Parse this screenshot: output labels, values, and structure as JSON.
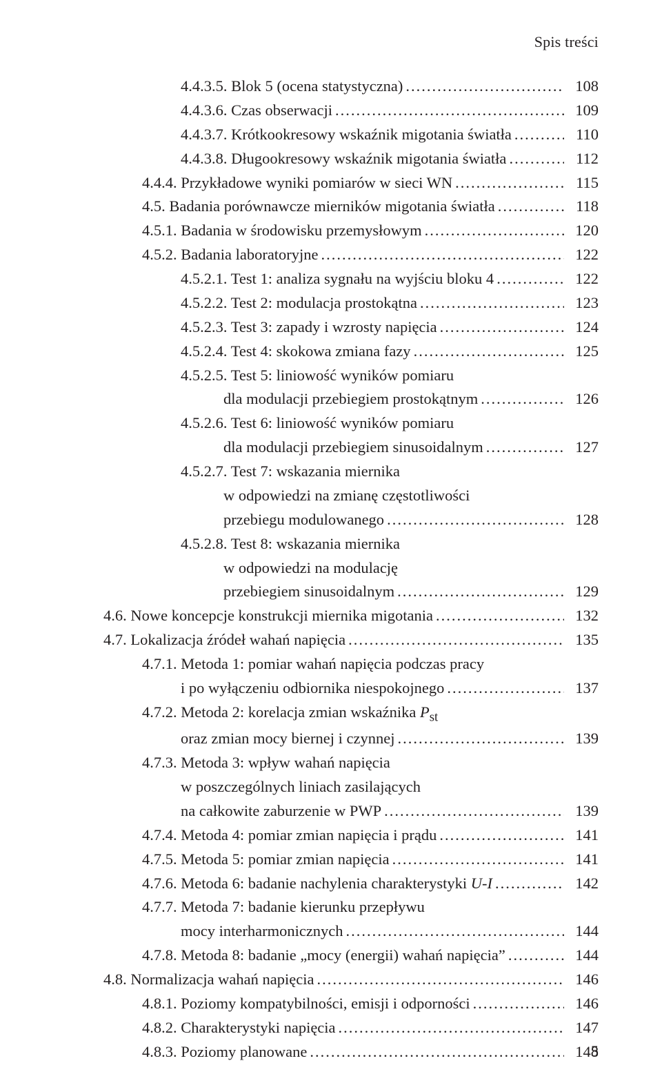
{
  "running_head": "Spis treści",
  "page_number": "5",
  "entries": [
    {
      "indent": "ind2",
      "lines": [
        {
          "text": "4.4.3.5. Blok 5 (ocena statystyczna)",
          "page": "108",
          "dots": true
        }
      ]
    },
    {
      "indent": "ind2",
      "lines": [
        {
          "text": "4.4.3.6. Czas obserwacji",
          "page": "109",
          "dots": true
        }
      ]
    },
    {
      "indent": "ind2",
      "lines": [
        {
          "text": "4.4.3.7. Krótkookresowy wskaźnik migotania światła",
          "page": "110",
          "dots": true
        }
      ]
    },
    {
      "indent": "ind2",
      "lines": [
        {
          "text": "4.4.3.8. Długookresowy wskaźnik migotania światła",
          "page": "112",
          "dots": true
        }
      ]
    },
    {
      "indent": "ind1",
      "lines": [
        {
          "text": "4.4.4. Przykładowe wyniki pomiarów w sieci WN",
          "page": "115",
          "dots": true
        }
      ]
    },
    {
      "indent": "ind05",
      "lines": [
        {
          "text": "4.5. Badania porównawcze mierników migotania światła",
          "page": "118",
          "dots": true
        }
      ]
    },
    {
      "indent": "ind1",
      "lines": [
        {
          "text": "4.5.1. Badania w środowisku przemysłowym",
          "page": "120",
          "dots": true
        }
      ]
    },
    {
      "indent": "ind1",
      "lines": [
        {
          "text": "4.5.2. Badania laboratoryjne",
          "page": "122",
          "dots": true
        }
      ]
    },
    {
      "indent": "ind2",
      "lines": [
        {
          "text": "4.5.2.1. Test 1: analiza sygnału na wyjściu bloku 4",
          "page": "122",
          "dots": true
        }
      ]
    },
    {
      "indent": "ind2",
      "lines": [
        {
          "text": "4.5.2.2. Test 2: modulacja prostokątna",
          "page": "123",
          "dots": true
        }
      ]
    },
    {
      "indent": "ind2",
      "lines": [
        {
          "text": "4.5.2.3. Test 3: zapady i wzrosty napięcia",
          "page": "124",
          "dots": true
        }
      ]
    },
    {
      "indent": "ind2",
      "lines": [
        {
          "text": "4.5.2.4. Test 4: skokowa zmiana fazy",
          "page": "125",
          "dots": true
        }
      ]
    },
    {
      "indent": "ind2",
      "lines": [
        {
          "text": "4.5.2.5. Test 5: liniowość wyników pomiaru",
          "dots": false
        },
        {
          "text": "dla modulacji przebiegiem prostokątnym",
          "page": "126",
          "dots": true,
          "cont": "cont2"
        }
      ]
    },
    {
      "indent": "ind2",
      "lines": [
        {
          "text": "4.5.2.6. Test 6: liniowość wyników pomiaru",
          "dots": false
        },
        {
          "text": "dla modulacji przebiegiem sinusoidalnym",
          "page": "127",
          "dots": true,
          "cont": "cont2"
        }
      ]
    },
    {
      "indent": "ind2",
      "lines": [
        {
          "text": "4.5.2.7. Test 7: wskazania miernika",
          "dots": false
        },
        {
          "text": "w odpowiedzi na zmianę częstotliwości",
          "dots": false,
          "cont": "cont2"
        },
        {
          "text": "przebiegu modulowanego",
          "page": "128",
          "dots": true,
          "cont": "cont2"
        }
      ]
    },
    {
      "indent": "ind2",
      "lines": [
        {
          "text": "4.5.2.8. Test 8: wskazania miernika",
          "dots": false
        },
        {
          "text": "w odpowiedzi na modulację",
          "dots": false,
          "cont": "cont2"
        },
        {
          "text": "przebiegiem sinusoidalnym",
          "page": "129",
          "dots": true,
          "cont": "cont2"
        }
      ]
    },
    {
      "indent": "ind0",
      "lines": [
        {
          "text": "4.6. Nowe koncepcje konstrukcji miernika migotania",
          "page": "132",
          "dots": true
        }
      ]
    },
    {
      "indent": "ind0",
      "lines": [
        {
          "text": "4.7. Lokalizacja źródeł wahań napięcia",
          "page": "135",
          "dots": true
        }
      ]
    },
    {
      "indent": "ind1",
      "lines": [
        {
          "text": "4.7.1. Metoda 1: pomiar wahań napięcia podczas pracy",
          "dots": false
        },
        {
          "text": "i po wyłączeniu odbiornika niespokojnego",
          "page": "137",
          "dots": true,
          "cont": "cont"
        }
      ]
    },
    {
      "indent": "ind1",
      "lines": [
        {
          "text_html": "4.7.2. Metoda 2: korelacja zmian wskaźnika <span class=\"italic\">P</span><sub>st</sub>",
          "dots": false
        },
        {
          "text": "oraz zmian mocy biernej i czynnej",
          "page": "139",
          "dots": true,
          "cont": "cont"
        }
      ]
    },
    {
      "indent": "ind1",
      "lines": [
        {
          "text": "4.7.3. Metoda 3: wpływ wahań napięcia",
          "dots": false
        },
        {
          "text": "w poszczególnych liniach zasilających",
          "dots": false,
          "cont": "cont"
        },
        {
          "text": "na całkowite zaburzenie w PWP",
          "page": "139",
          "dots": true,
          "cont": "cont"
        }
      ]
    },
    {
      "indent": "ind1",
      "lines": [
        {
          "text": "4.7.4. Metoda 4: pomiar zmian napięcia i prądu",
          "page": "141",
          "dots": true
        }
      ]
    },
    {
      "indent": "ind1",
      "lines": [
        {
          "text": "4.7.5. Metoda 5: pomiar zmian napięcia",
          "page": "141",
          "dots": true
        }
      ]
    },
    {
      "indent": "ind1",
      "lines": [
        {
          "text_html": "4.7.6. Metoda 6: badanie nachylenia charakterystyki <span class=\"italic\">U-I</span>",
          "page": "142",
          "dots": true
        }
      ]
    },
    {
      "indent": "ind1",
      "lines": [
        {
          "text": "4.7.7. Metoda 7: badanie kierunku przepływu",
          "dots": false
        },
        {
          "text": "mocy interharmonicznych",
          "page": "144",
          "dots": true,
          "cont": "cont"
        }
      ]
    },
    {
      "indent": "ind1",
      "lines": [
        {
          "text": "4.7.8. Metoda 8: badanie „mocy (energii) wahań napięcia”",
          "page": "144",
          "dots": true
        }
      ]
    },
    {
      "indent": "ind0",
      "lines": [
        {
          "text": "4.8. Normalizacja wahań napięcia",
          "page": "146",
          "dots": true
        }
      ]
    },
    {
      "indent": "ind1",
      "lines": [
        {
          "text": "4.8.1. Poziomy kompatybilności, emisji i odporności",
          "page": "146",
          "dots": true
        }
      ]
    },
    {
      "indent": "ind1",
      "lines": [
        {
          "text": "4.8.2. Charakterystyki napięcia",
          "page": "147",
          "dots": true
        }
      ]
    },
    {
      "indent": "ind1",
      "lines": [
        {
          "text": "4.8.3. Poziomy planowane",
          "page": "148",
          "dots": true
        }
      ]
    }
  ]
}
